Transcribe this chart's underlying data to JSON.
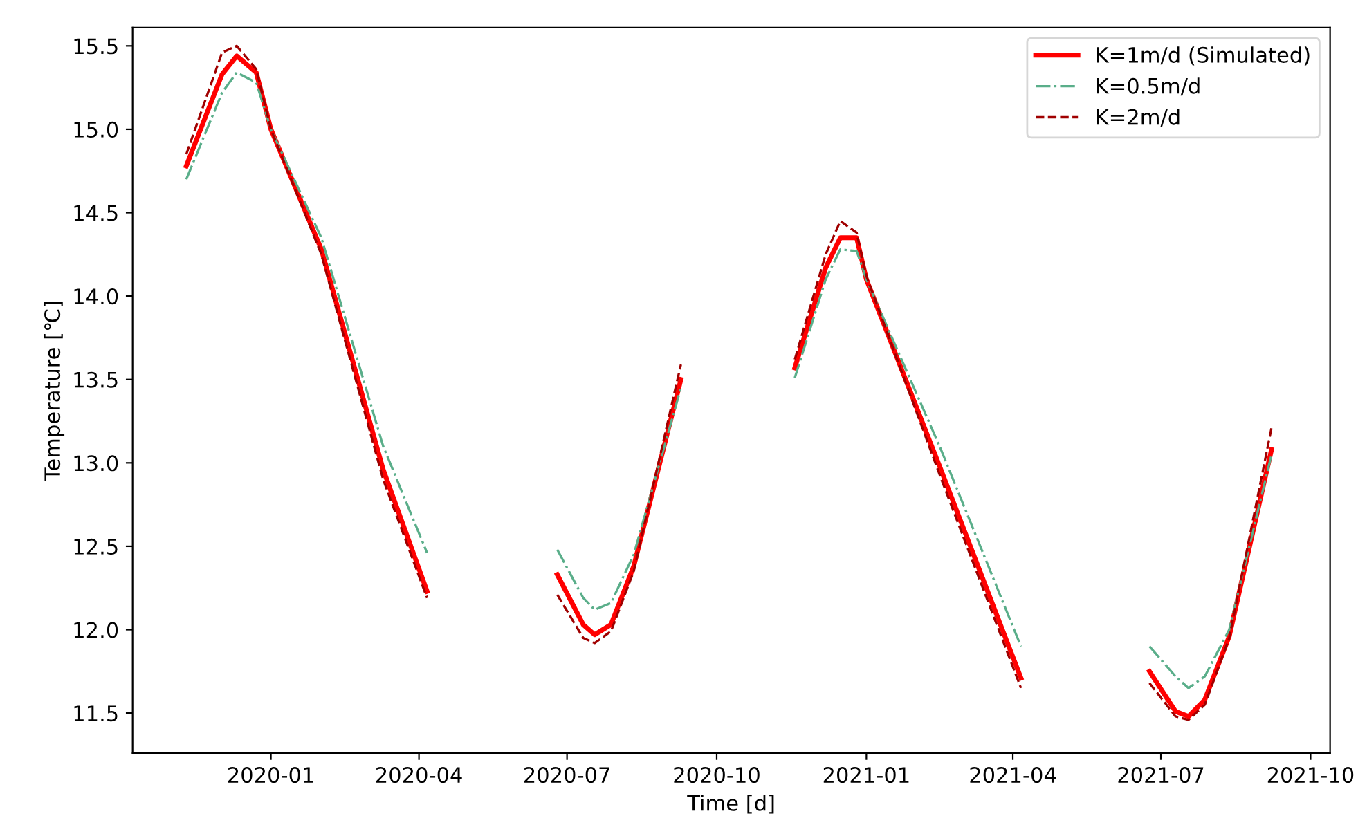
{
  "chart_data": {
    "type": "line",
    "xlabel": "Time [d]",
    "ylabel": "Temperature [℃]",
    "x": [
      "2019-11-10",
      "2019-12-02",
      "2019-12-11",
      "2019-12-23",
      "2020-01-01",
      "2020-02-01",
      "2020-03-10",
      "2020-04-06",
      "2020-05-15",
      "2020-06-25",
      "2020-07-11",
      "2020-07-18",
      "2020-07-28",
      "2020-08-11",
      "2020-09-09",
      "2020-10-15",
      "2020-11-18",
      "2020-12-07",
      "2020-12-16",
      "2020-12-26",
      "2021-01-01",
      "2021-02-15",
      "2021-04-06",
      "2021-05-15",
      "2021-06-24",
      "2021-07-10",
      "2021-07-18",
      "2021-07-28",
      "2021-08-12",
      "2021-09-07"
    ],
    "series": [
      {
        "name": "K=1m/d (Simulated)",
        "color": "#ff0000",
        "line_style": "solid",
        "values": [
          14.78,
          15.33,
          15.44,
          15.34,
          15.0,
          14.28,
          12.96,
          12.23,
          null,
          12.33,
          12.03,
          11.97,
          12.03,
          12.38,
          13.5,
          null,
          13.57,
          14.17,
          14.35,
          14.35,
          14.1,
          12.98,
          11.71,
          null,
          11.75,
          11.51,
          11.48,
          11.58,
          11.96,
          13.08
        ]
      },
      {
        "name": "K=0.5m/d",
        "color": "#5aae8a",
        "line_style": "dashdot",
        "values": [
          14.7,
          15.22,
          15.34,
          15.28,
          15.0,
          14.35,
          13.1,
          12.46,
          null,
          12.48,
          12.19,
          12.12,
          12.16,
          12.45,
          13.45,
          null,
          13.51,
          14.1,
          14.28,
          14.27,
          14.1,
          13.1,
          11.9,
          null,
          11.9,
          11.72,
          11.65,
          11.72,
          12.0,
          13.05
        ]
      },
      {
        "name": "K=2m/d",
        "color": "#a00000",
        "line_style": "dashed",
        "values": [
          14.85,
          15.46,
          15.5,
          15.36,
          15.0,
          14.25,
          12.9,
          12.19,
          null,
          12.21,
          11.95,
          11.92,
          11.99,
          12.35,
          13.59,
          null,
          13.62,
          14.25,
          14.45,
          14.38,
          14.12,
          12.93,
          11.65,
          null,
          11.68,
          11.48,
          11.46,
          11.55,
          11.95,
          13.21
        ]
      }
    ],
    "xlim": [
      "2019-10-08",
      "2021-10-13"
    ],
    "xticks": [
      "2020-01",
      "2020-04",
      "2020-07",
      "2020-10",
      "2021-01",
      "2021-04",
      "2021-07",
      "2021-10"
    ],
    "ylim": [
      11.26,
      15.61
    ],
    "yticks": [
      11.5,
      {
        "value": 12,
        "label": "12.0"
      },
      12.5,
      {
        "value": 13,
        "label": "13.0"
      },
      13.5,
      {
        "value": 14,
        "label": "14.0"
      },
      14.5,
      {
        "value": 15,
        "label": "15.0"
      },
      15.5
    ],
    "grid": false,
    "legend": "top right",
    "marker": "none"
  }
}
